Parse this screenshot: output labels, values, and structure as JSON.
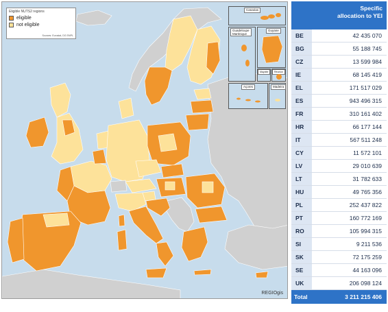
{
  "legend": {
    "title": "Eligible NUTS2 regions",
    "eligible_label": "eligible",
    "not_eligible_label": "not eligible",
    "source": "Sources: Eurostat, DG EMPL",
    "eligible_color": "#f0962d",
    "not_eligible_color": "#fde29a",
    "outside_color": "#d0d0d0",
    "sea_color": "#c7dcec"
  },
  "insets": {
    "canarias": "Canarias",
    "guadeloupe_martinique": "Guadeloupe\nMartinique",
    "guyane": "Guyane",
    "mayotte": "Mayotte",
    "reunion": "Réunion",
    "acores": "Açores",
    "madeira": "Madeira"
  },
  "credit": "REGIOgis",
  "table": {
    "header": "Specific\nallocation to YEI",
    "rows": [
      {
        "code": "BE",
        "value": "42 435 070"
      },
      {
        "code": "BG",
        "value": "55 188 745"
      },
      {
        "code": "CZ",
        "value": "13 599 984"
      },
      {
        "code": "IE",
        "value": "68 145 419"
      },
      {
        "code": "EL",
        "value": "171 517 029"
      },
      {
        "code": "ES",
        "value": "943 496 315"
      },
      {
        "code": "FR",
        "value": "310 161 402"
      },
      {
        "code": "HR",
        "value": "66 177 144"
      },
      {
        "code": "IT",
        "value": "567 511 248"
      },
      {
        "code": "CY",
        "value": "11 572 101"
      },
      {
        "code": "LV",
        "value": "29 010 639"
      },
      {
        "code": "LT",
        "value": "31 782 633"
      },
      {
        "code": "HU",
        "value": "49 765 356"
      },
      {
        "code": "PL",
        "value": "252 437 822"
      },
      {
        "code": "PT",
        "value": "160 772 169"
      },
      {
        "code": "RO",
        "value": "105 994 315"
      },
      {
        "code": "SI",
        "value": "9 211 536"
      },
      {
        "code": "SK",
        "value": "72 175 259"
      },
      {
        "code": "SE",
        "value": "44 163 096"
      },
      {
        "code": "UK",
        "value": "206 098 124"
      }
    ],
    "total_label": "Total",
    "total_value": "3 211 215 406"
  }
}
